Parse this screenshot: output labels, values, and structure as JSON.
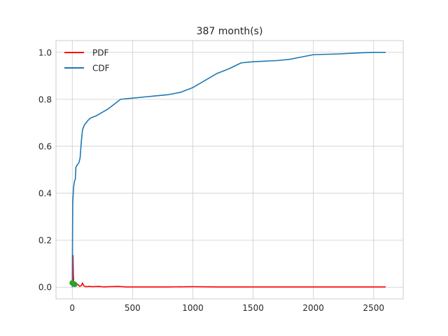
{
  "chart_data": {
    "type": "line",
    "title": "387 month(s)",
    "xlabel": "",
    "ylabel": "",
    "xlim": [
      -135,
      2745
    ],
    "ylim": [
      -0.05,
      1.05
    ],
    "x_ticks": [
      0,
      500,
      1000,
      1500,
      2000,
      2500
    ],
    "y_ticks": [
      0.0,
      0.2,
      0.4,
      0.6,
      0.8,
      1.0
    ],
    "x_tick_labels": [
      "0",
      "500",
      "1000",
      "1500",
      "2000",
      "2500"
    ],
    "y_tick_labels": [
      "0.0",
      "0.2",
      "0.4",
      "0.6",
      "0.8",
      "1.0"
    ],
    "grid": true,
    "legend_position": "top-left",
    "series": [
      {
        "name": "PDF",
        "color": "#ff0000",
        "points": [
          [
            0,
            0.02
          ],
          [
            3,
            0.05
          ],
          [
            6,
            0.135
          ],
          [
            9,
            0.05
          ],
          [
            12,
            0.02
          ],
          [
            16,
            0.012
          ],
          [
            22,
            0.018
          ],
          [
            30,
            0.008
          ],
          [
            45,
            0.012
          ],
          [
            60,
            0.004
          ],
          [
            75,
            0.006
          ],
          [
            85,
            0.018
          ],
          [
            95,
            0.006
          ],
          [
            110,
            0.002
          ],
          [
            140,
            0.003
          ],
          [
            170,
            0.002
          ],
          [
            220,
            0.003
          ],
          [
            260,
            0.001
          ],
          [
            300,
            0.002
          ],
          [
            380,
            0.003
          ],
          [
            450,
            0.001
          ],
          [
            600,
            0.001
          ],
          [
            800,
            0.001
          ],
          [
            1000,
            0.002
          ],
          [
            1200,
            0.001
          ],
          [
            1500,
            0.001
          ],
          [
            1800,
            0.001
          ],
          [
            2100,
            0.001
          ],
          [
            2400,
            0.001
          ],
          [
            2600,
            0.001
          ]
        ]
      },
      {
        "name": "CDF",
        "color": "#1f77b4",
        "points": [
          [
            0,
            0.0
          ],
          [
            2,
            0.2
          ],
          [
            4,
            0.36
          ],
          [
            8,
            0.4
          ],
          [
            12,
            0.43
          ],
          [
            18,
            0.45
          ],
          [
            25,
            0.46
          ],
          [
            30,
            0.51
          ],
          [
            40,
            0.52
          ],
          [
            55,
            0.53
          ],
          [
            65,
            0.55
          ],
          [
            75,
            0.62
          ],
          [
            85,
            0.67
          ],
          [
            100,
            0.69
          ],
          [
            130,
            0.71
          ],
          [
            150,
            0.72
          ],
          [
            200,
            0.73
          ],
          [
            250,
            0.745
          ],
          [
            300,
            0.76
          ],
          [
            350,
            0.78
          ],
          [
            400,
            0.8
          ],
          [
            500,
            0.805
          ],
          [
            600,
            0.81
          ],
          [
            700,
            0.815
          ],
          [
            800,
            0.82
          ],
          [
            900,
            0.83
          ],
          [
            1000,
            0.85
          ],
          [
            1100,
            0.88
          ],
          [
            1200,
            0.91
          ],
          [
            1300,
            0.93
          ],
          [
            1400,
            0.955
          ],
          [
            1500,
            0.96
          ],
          [
            1700,
            0.965
          ],
          [
            1800,
            0.97
          ],
          [
            1900,
            0.98
          ],
          [
            2000,
            0.99
          ],
          [
            2200,
            0.993
          ],
          [
            2400,
            0.998
          ],
          [
            2500,
            1.0
          ],
          [
            2600,
            1.0
          ]
        ]
      }
    ],
    "markers": [
      {
        "x": 0,
        "y": 0.018,
        "color": "#2ca02c"
      },
      {
        "x": 20,
        "y": 0.012,
        "color": "#2ca02c"
      }
    ]
  }
}
